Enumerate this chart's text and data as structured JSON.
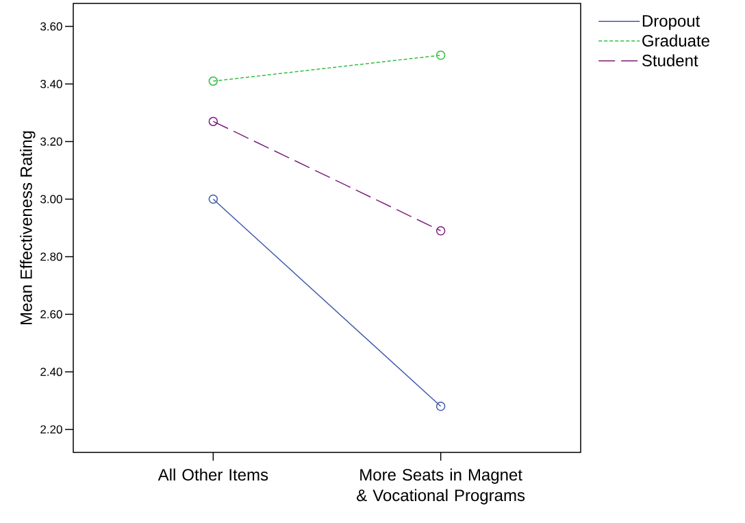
{
  "chart_data": {
    "type": "line",
    "ylabel": "Mean Effectiveness Rating",
    "categories": [
      "All Other Items",
      "More Seats in Magnet & Vocational Programs"
    ],
    "series": [
      {
        "name": "Dropout",
        "color": "#3f58a8",
        "values": [
          3.0,
          2.28
        ],
        "line_style": "solid"
      },
      {
        "name": "Graduate",
        "color": "#2fbf3f",
        "values": [
          3.41,
          3.5
        ],
        "line_style": "dotted"
      },
      {
        "name": "Student",
        "color": "#7b1c7a",
        "values": [
          3.27,
          2.89
        ],
        "line_style": "dashed"
      }
    ],
    "ylim": [
      2.12,
      3.68
    ],
    "yticks": [
      {
        "value": 2.2,
        "label": "2.20"
      },
      {
        "value": 2.4,
        "label": "2.40"
      },
      {
        "value": 2.6,
        "label": "2.60"
      },
      {
        "value": 2.8,
        "label": "2.80"
      },
      {
        "value": 3.0,
        "label": "3.00"
      },
      {
        "value": 3.2,
        "label": "3.20"
      },
      {
        "value": 3.4,
        "label": "3.40"
      },
      {
        "value": 3.6,
        "label": "3.60"
      }
    ],
    "marker": "circle",
    "legend": "top right",
    "grid": false
  }
}
